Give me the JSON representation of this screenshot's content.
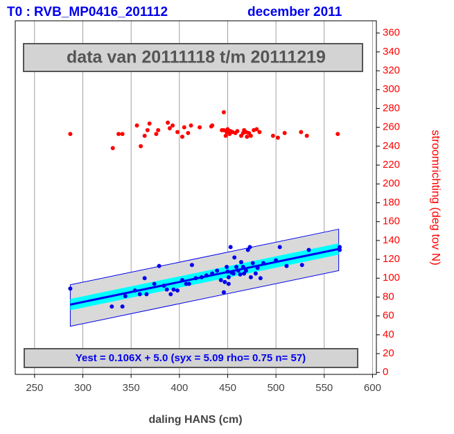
{
  "chart_data": {
    "type": "scatter",
    "title": "T0 : RVB_MP0416_201112",
    "subtitle": "december 2011",
    "period_label": "data van 20111118 t/m 20111219",
    "equation_label": "Yest = 0.106X + 5.0 (syx = 5.09 rho= 0.75 n= 57)",
    "x_label": "daling HANS (cm)",
    "y_label": "stroomrichting (deg tov N)",
    "xlim": [
      230,
      604
    ],
    "ylim": [
      -2,
      373
    ],
    "xticks": [
      250,
      300,
      350,
      400,
      450,
      500,
      550,
      600
    ],
    "yticks": [
      0,
      20,
      40,
      60,
      80,
      100,
      120,
      140,
      160,
      180,
      200,
      220,
      240,
      260,
      280,
      300,
      320,
      340,
      360
    ],
    "grid": true,
    "bands": [
      {
        "color": "#d9d9d9",
        "x": [
          287,
          565
        ],
        "lower": [
          49,
          108
        ],
        "upper": [
          93,
          152
        ]
      },
      {
        "color": "#00ffff",
        "x": [
          287,
          565
        ],
        "lower": [
          66,
          125
        ],
        "upper": [
          78,
          137
        ]
      }
    ],
    "lines": [
      {
        "color": "#0000ee",
        "x": [
          287,
          565
        ],
        "values": [
          72,
          131
        ]
      }
    ],
    "series": [
      {
        "color": "#ff0000",
        "x": [
          287,
          331,
          337,
          341,
          356,
          360,
          364,
          367,
          369,
          376,
          378,
          388,
          390,
          393,
          398,
          403,
          405,
          409,
          412,
          421,
          433,
          434,
          444,
          446,
          446,
          448,
          449,
          450,
          452,
          453,
          455,
          458,
          460,
          464,
          466,
          467,
          469,
          470,
          472,
          474,
          477,
          480,
          483,
          497,
          502,
          509,
          526,
          532,
          564
        ],
        "values": [
          253,
          238,
          253,
          253,
          262,
          240,
          251,
          257,
          264,
          253,
          257,
          265,
          259,
          262,
          255,
          250,
          260,
          254,
          262,
          260,
          261,
          262,
          257,
          257,
          276,
          251,
          255,
          258,
          253,
          256,
          255,
          254,
          256,
          251,
          254,
          257,
          255,
          250,
          254,
          251,
          257,
          258,
          255,
          251,
          249,
          254,
          255,
          251,
          253
        ]
      },
      {
        "color": "#0000ee",
        "x": [
          287,
          330,
          341,
          344,
          354,
          359,
          364,
          366,
          374,
          379,
          384,
          387,
          391,
          394,
          398,
          403,
          407,
          410,
          413,
          417,
          423,
          428,
          434,
          439,
          443,
          446,
          447,
          449,
          450,
          451,
          453,
          454,
          456,
          457,
          459,
          461,
          463,
          464,
          466,
          467,
          469,
          471,
          473,
          474,
          476,
          479,
          481,
          484,
          487,
          500,
          504,
          511,
          527,
          534,
          566,
          566,
          451
        ],
        "values": [
          89,
          70,
          70,
          81,
          87,
          83,
          100,
          83,
          94,
          113,
          92,
          88,
          83,
          88,
          87,
          98,
          94,
          94,
          114,
          100,
          101,
          103,
          105,
          108,
          98,
          85,
          96,
          112,
          107,
          101,
          133,
          106,
          105,
          122,
          112,
          108,
          104,
          117,
          112,
          105,
          108,
          130,
          133,
          101,
          116,
          105,
          111,
          100,
          116,
          119,
          133,
          113,
          114,
          130,
          133,
          130,
          94
        ]
      }
    ]
  }
}
